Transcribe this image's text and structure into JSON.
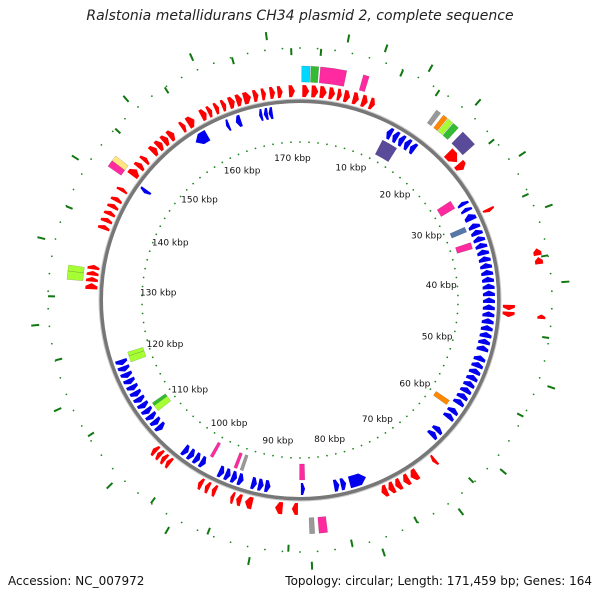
{
  "title": "Ralstonia metallidurans CH34 plasmid 2, complete sequence",
  "footer": {
    "accession": "Accession: NC_007972",
    "summary": "Topology: circular; Length: 171,459 bp; Genes: 164"
  },
  "genome": {
    "length_bp": 171459,
    "tick_labels": [
      "10 kbp",
      "20 kbp",
      "30 kbp",
      "40 kbp",
      "50 kbp",
      "60 kbp",
      "70 kbp",
      "80 kbp",
      "90 kbp",
      "100 kbp",
      "110 kbp",
      "120 kbp",
      "130 kbp",
      "140 kbp",
      "150 kbp",
      "160 kbp",
      "170 kbp"
    ],
    "tick_values_kbp": [
      10,
      20,
      30,
      40,
      50,
      60,
      70,
      80,
      90,
      100,
      110,
      120,
      130,
      140,
      150,
      160,
      170
    ]
  },
  "colors": {
    "forward_strand": "#ff0000",
    "reverse_strand": "#0000ee",
    "backbone": "#777777",
    "gc_dots": "#228822",
    "cog_colors": [
      "#ff2aa0",
      "#00d8ff",
      "#33bb33",
      "#a6ff33",
      "#5a4a9a",
      "#ff8800",
      "#999999",
      "#ffe680",
      "#5577aa"
    ]
  },
  "features": {
    "forward": [
      [
        0.3,
        1.2
      ],
      [
        1.5,
        2.4
      ],
      [
        2.6,
        3.5
      ],
      [
        3.8,
        4.6
      ],
      [
        4.9,
        5.5
      ],
      [
        5.8,
        6.6
      ],
      [
        7.0,
        7.8
      ],
      [
        8.2,
        9.0
      ],
      [
        9.3,
        10.0
      ],
      [
        21.5,
        23.2
      ],
      [
        23.5,
        24.5
      ],
      [
        30.5,
        31.0
      ],
      [
        43.5,
        44.2
      ],
      [
        44.4,
        45.1
      ],
      [
        66.5,
        67.0
      ],
      [
        69.5,
        70.5
      ],
      [
        70.8,
        71.6
      ],
      [
        72.0,
        72.8
      ],
      [
        73.0,
        73.8
      ],
      [
        74.0,
        74.8
      ],
      [
        86.0,
        86.8
      ],
      [
        88.0,
        89.0
      ],
      [
        92.0,
        93.0
      ],
      [
        93.5,
        94.2
      ],
      [
        94.5,
        95.0
      ],
      [
        97.0,
        97.6
      ],
      [
        98.0,
        98.6
      ],
      [
        99.0,
        99.6
      ],
      [
        104.0,
        104.6
      ],
      [
        104.8,
        105.4
      ],
      [
        105.6,
        106.2
      ],
      [
        106.4,
        107.0
      ],
      [
        130.0,
        130.8
      ],
      [
        131.0,
        131.6
      ],
      [
        131.8,
        132.4
      ],
      [
        132.6,
        133.2
      ],
      [
        138.0,
        138.6
      ],
      [
        139.0,
        139.6
      ],
      [
        140.0,
        140.6
      ],
      [
        141.0,
        141.6
      ],
      [
        142.0,
        142.6
      ],
      [
        143.5,
        144.0
      ],
      [
        146.0,
        147.0
      ],
      [
        147.3,
        148.0
      ],
      [
        148.4,
        149.0
      ],
      [
        150.0,
        150.8
      ],
      [
        151.0,
        151.8
      ],
      [
        152.0,
        152.8
      ],
      [
        153.0,
        153.8
      ],
      [
        155.0,
        155.6
      ],
      [
        156.0,
        157.0
      ],
      [
        158.0,
        158.8
      ],
      [
        159.0,
        159.6
      ],
      [
        160.0,
        160.6
      ],
      [
        161.0,
        161.6
      ],
      [
        162.0,
        162.8
      ],
      [
        163.0,
        163.8
      ],
      [
        164.0,
        165.0
      ],
      [
        165.3,
        166.0
      ],
      [
        166.4,
        167.0
      ],
      [
        167.5,
        168.2
      ],
      [
        168.5,
        169.2
      ],
      [
        170.0,
        170.8
      ]
    ],
    "reverse": [
      [
        13.0,
        13.8
      ],
      [
        14.0,
        14.8
      ],
      [
        15.0,
        15.8
      ],
      [
        16.0,
        16.8
      ],
      [
        17.0,
        17.8
      ],
      [
        28.0,
        28.6
      ],
      [
        29.0,
        29.6
      ],
      [
        30.0,
        31.0
      ],
      [
        31.5,
        32.3
      ],
      [
        32.5,
        33.3
      ],
      [
        33.5,
        34.3
      ],
      [
        34.5,
        35.3
      ],
      [
        35.5,
        36.3
      ],
      [
        36.5,
        37.3
      ],
      [
        37.5,
        38.3
      ],
      [
        38.5,
        39.3
      ],
      [
        39.5,
        40.3
      ],
      [
        40.5,
        41.3
      ],
      [
        41.5,
        42.3
      ],
      [
        42.5,
        43.3
      ],
      [
        43.5,
        44.3
      ],
      [
        44.5,
        45.3
      ],
      [
        45.5,
        46.3
      ],
      [
        46.5,
        47.3
      ],
      [
        47.5,
        48.3
      ],
      [
        48.5,
        49.3
      ],
      [
        49.5,
        50.3
      ],
      [
        51.0,
        51.8
      ],
      [
        52.0,
        52.8
      ],
      [
        53.0,
        53.8
      ],
      [
        54.0,
        54.8
      ],
      [
        55.0,
        55.8
      ],
      [
        56.0,
        56.8
      ],
      [
        57.0,
        57.8
      ],
      [
        58.0,
        58.8
      ],
      [
        59.5,
        60.3
      ],
      [
        60.5,
        61.3
      ],
      [
        63.0,
        63.8
      ],
      [
        64.0,
        64.8
      ],
      [
        76.0,
        78.5
      ],
      [
        79.0,
        79.8
      ],
      [
        80.0,
        80.8
      ],
      [
        85.0,
        85.6
      ],
      [
        90.0,
        90.8
      ],
      [
        91.0,
        91.8
      ],
      [
        92.0,
        92.8
      ],
      [
        94.0,
        94.8
      ],
      [
        95.0,
        95.8
      ],
      [
        96.0,
        96.8
      ],
      [
        97.0,
        97.8
      ],
      [
        100.0,
        100.8
      ],
      [
        101.0,
        101.8
      ],
      [
        102.0,
        102.8
      ],
      [
        103.0,
        103.8
      ],
      [
        108.0,
        108.8
      ],
      [
        109.0,
        109.8
      ],
      [
        110.0,
        110.8
      ],
      [
        111.0,
        111.8
      ],
      [
        112.0,
        112.8
      ],
      [
        113.0,
        113.8
      ],
      [
        114.0,
        114.8
      ],
      [
        115.0,
        115.8
      ],
      [
        116.0,
        116.8
      ],
      [
        117.0,
        117.8
      ],
      [
        118.0,
        118.8
      ],
      [
        119.0,
        119.8
      ],
      [
        145.0,
        145.6
      ],
      [
        155.5,
        157.5
      ],
      [
        160.5,
        161.0
      ],
      [
        162.0,
        162.8
      ],
      [
        165.5,
        166.0
      ],
      [
        166.2,
        166.8
      ],
      [
        166.9,
        167.5
      ]
    ],
    "cog_outer": [
      [
        0.2,
        1.2,
        1
      ],
      [
        1.3,
        2.2,
        2
      ],
      [
        2.4,
        5.5,
        0
      ],
      [
        7.5,
        8.2,
        0
      ],
      [
        17.0,
        17.6,
        6
      ],
      [
        18.0,
        18.6,
        5
      ],
      [
        18.7,
        19.4,
        3
      ],
      [
        19.5,
        20.3,
        2
      ],
      [
        21.0,
        23.0,
        4
      ],
      [
        82.5,
        83.5,
        0
      ],
      [
        84.0,
        84.6,
        6
      ],
      [
        131.0,
        132.0,
        3
      ],
      [
        132.0,
        132.7,
        3
      ],
      [
        145.2,
        146.0,
        0
      ],
      [
        146.0,
        146.7,
        7
      ]
    ],
    "cog_inner": [
      [
        13.0,
        15.5,
        4
      ],
      [
        27.0,
        28.3,
        0
      ],
      [
        31.5,
        32.3,
        8
      ],
      [
        34.0,
        35.0,
        0
      ],
      [
        59.0,
        59.8,
        5
      ],
      [
        85.0,
        85.8,
        0
      ],
      [
        94.5,
        95.0,
        6
      ],
      [
        95.5,
        96.0,
        0
      ],
      [
        99.5,
        100.0,
        0
      ],
      [
        110.5,
        111.5,
        3
      ],
      [
        111.5,
        112.0,
        2
      ],
      [
        119.0,
        120.0,
        3
      ],
      [
        120.0,
        120.6,
        3
      ]
    ],
    "outer_reverse_small": [
      [
        37.0,
        37.8
      ],
      [
        38.0,
        38.8
      ],
      [
        44.5,
        45.0
      ]
    ],
    "gc_marks": [
      [
        2.3,
        0
      ],
      [
        5.0,
        1
      ],
      [
        9.0,
        1
      ],
      [
        11.5,
        0
      ],
      [
        14.0,
        1
      ],
      [
        16.0,
        0
      ],
      [
        20.0,
        1
      ],
      [
        24.0,
        0
      ],
      [
        27.0,
        1
      ],
      [
        31.0,
        0
      ],
      [
        33.0,
        1
      ],
      [
        38.0,
        0
      ],
      [
        41.0,
        1
      ],
      [
        47.0,
        0
      ],
      [
        52.0,
        1
      ],
      [
        56.0,
        0
      ],
      [
        62.0,
        1
      ],
      [
        65.0,
        0
      ],
      [
        68.0,
        1
      ],
      [
        72.5,
        0
      ],
      [
        77.0,
        1
      ],
      [
        80.0,
        0
      ],
      [
        84.5,
        1
      ],
      [
        87.0,
        0
      ],
      [
        91.0,
        1
      ],
      [
        96.0,
        0
      ],
      [
        100.0,
        1
      ],
      [
        103.0,
        0
      ],
      [
        107.5,
        1
      ],
      [
        113.0,
        0
      ],
      [
        117.0,
        1
      ],
      [
        122.0,
        0
      ],
      [
        126.0,
        1
      ],
      [
        129.0,
        0
      ],
      [
        135.0,
        1
      ],
      [
        139.0,
        0
      ],
      [
        144.0,
        1
      ],
      [
        149.0,
        0
      ],
      [
        152.0,
        1
      ],
      [
        156.0,
        0
      ],
      [
        160.0,
        1
      ],
      [
        164.0,
        0
      ],
      [
        168.0,
        1
      ],
      [
        170.5,
        0
      ]
    ]
  }
}
